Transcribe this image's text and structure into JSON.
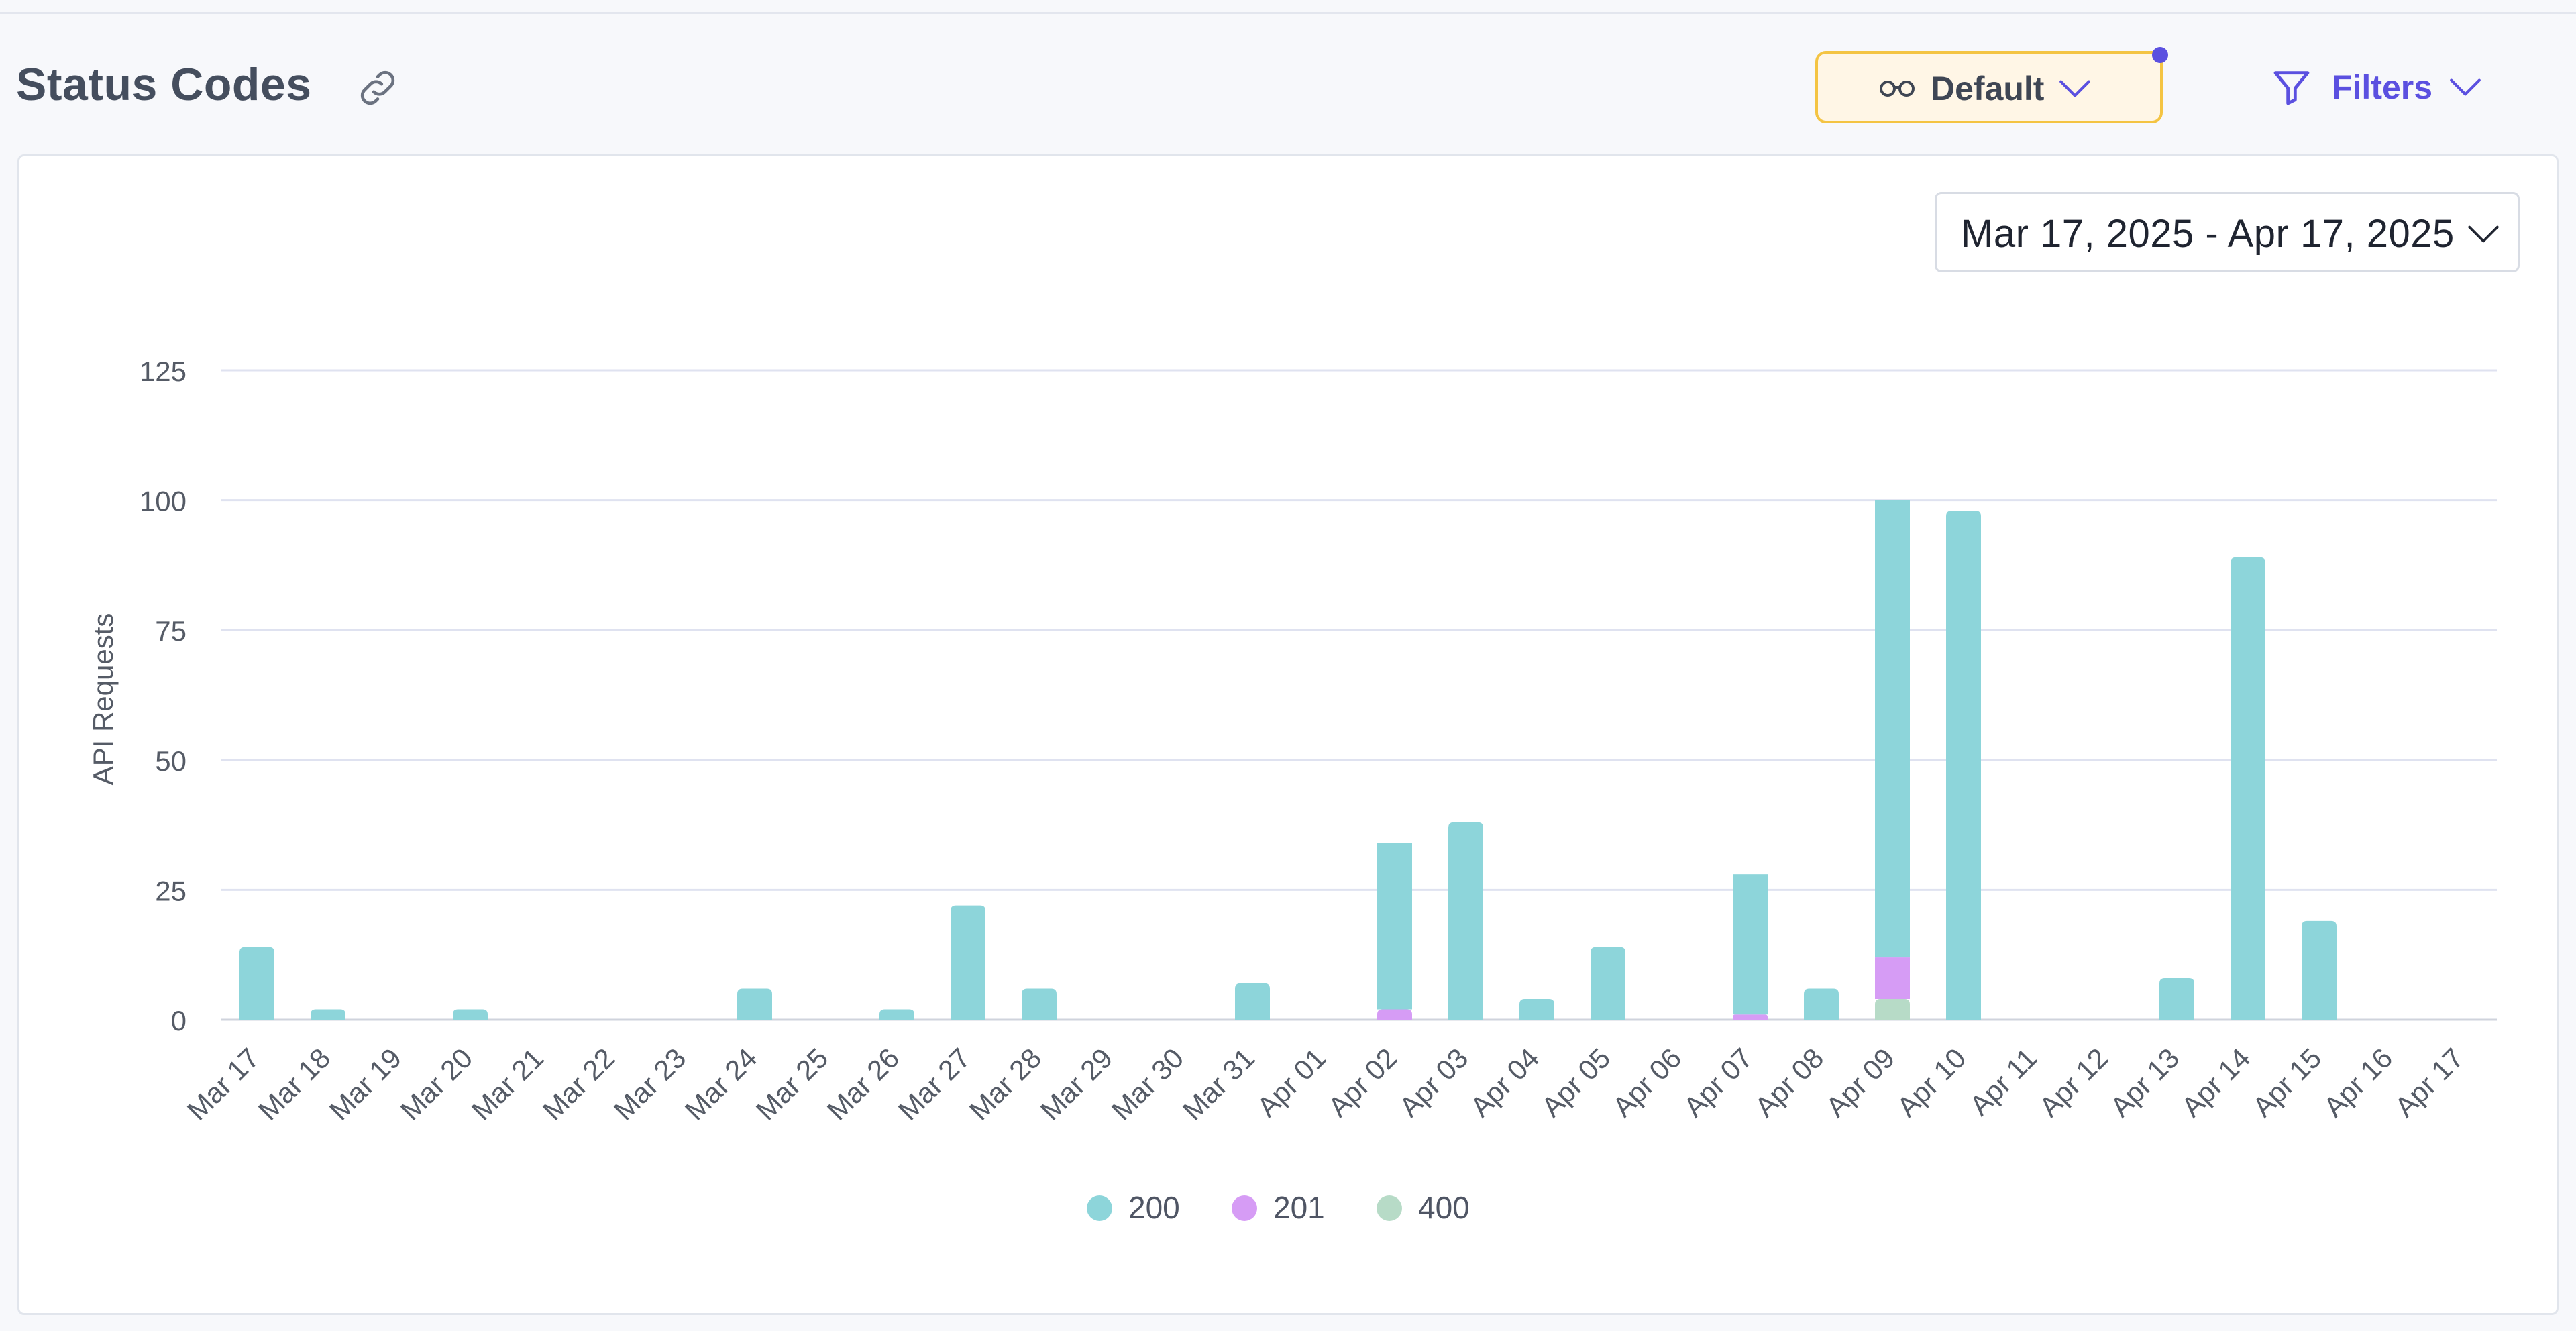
{
  "header": {
    "title": "Status Codes",
    "view_button_label": "Default",
    "filters_button_label": "Filters",
    "accent_color": "#5b50e0",
    "view_button_border_color": "#f4c443"
  },
  "date_range": {
    "label": "Mar 17, 2025 - Apr 17, 2025"
  },
  "icons": {
    "link": "link-icon",
    "glasses": "glasses-icon",
    "funnel": "funnel-icon",
    "chevron": "chevron-down-icon"
  },
  "chart_data": {
    "type": "bar",
    "stacked": true,
    "ylabel": "API Requests",
    "ylim": [
      0,
      125
    ],
    "yticks": [
      0,
      25,
      50,
      75,
      100,
      125
    ],
    "grid": true,
    "legend_position": "bottom",
    "categories": [
      "Mar 17",
      "Mar 18",
      "Mar 19",
      "Mar 20",
      "Mar 21",
      "Mar 22",
      "Mar 23",
      "Mar 24",
      "Mar 25",
      "Mar 26",
      "Mar 27",
      "Mar 28",
      "Mar 29",
      "Mar 30",
      "Mar 31",
      "Apr 01",
      "Apr 02",
      "Apr 03",
      "Apr 04",
      "Apr 05",
      "Apr 06",
      "Apr 07",
      "Apr 08",
      "Apr 09",
      "Apr 10",
      "Apr 11",
      "Apr 12",
      "Apr 13",
      "Apr 14",
      "Apr 15",
      "Apr 16",
      "Apr 17"
    ],
    "series": [
      {
        "name": "200",
        "color": "#8dd5da",
        "values": [
          14,
          2,
          0,
          2,
          0,
          0,
          0,
          6,
          0,
          2,
          22,
          6,
          0,
          0,
          7,
          0,
          32,
          38,
          4,
          14,
          0,
          27,
          6,
          88,
          98,
          0,
          0,
          8,
          89,
          19,
          0,
          0
        ]
      },
      {
        "name": "201",
        "color": "#d69cf5",
        "values": [
          0,
          0,
          0,
          0,
          0,
          0,
          0,
          0,
          0,
          0,
          0,
          0,
          0,
          0,
          0,
          0,
          2,
          0,
          0,
          0,
          0,
          1,
          0,
          8,
          0,
          0,
          0,
          0,
          0,
          0,
          0,
          0
        ]
      },
      {
        "name": "400",
        "color": "#b7dbc7",
        "values": [
          0,
          0,
          0,
          0,
          0,
          0,
          0,
          0,
          0,
          0,
          0,
          0,
          0,
          0,
          0,
          0,
          0,
          0,
          0,
          0,
          0,
          0,
          0,
          4,
          0,
          0,
          0,
          0,
          0,
          0,
          0,
          0
        ]
      }
    ]
  }
}
